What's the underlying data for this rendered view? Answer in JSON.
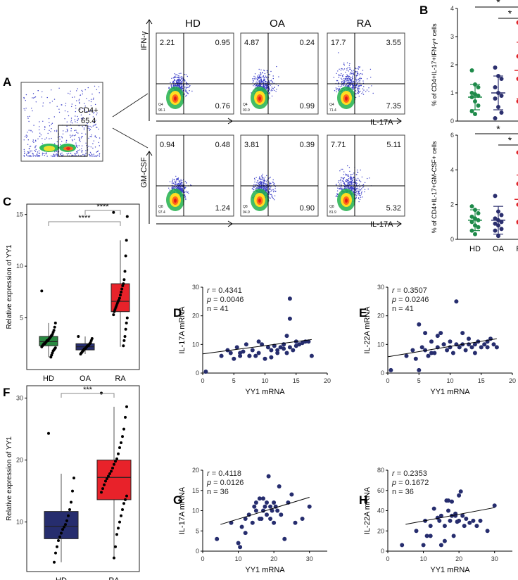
{
  "panel_letters": [
    "A",
    "B",
    "C",
    "D",
    "E",
    "F",
    "G",
    "H"
  ],
  "flow": {
    "columns": [
      "HD",
      "OA",
      "RA"
    ],
    "gate_label": "CD4+",
    "gate_value": "65.4",
    "row1_ylabel": "IFN-γ",
    "row2_ylabel": "GM-CSF",
    "xlabel": "IL-17A",
    "row1": [
      {
        "tl": "2.21",
        "tr": "0.95",
        "br": "0.76",
        "bl1": "Q4",
        "bl2": "96.1"
      },
      {
        "tl": "4.87",
        "tr": "0.24",
        "br": "0.99",
        "bl1": "Q4",
        "bl2": "93.9"
      },
      {
        "tl": "17.7",
        "tr": "3.55",
        "br": "7.35",
        "bl1": "Q4",
        "bl2": "71.4"
      }
    ],
    "row2": [
      {
        "tl": "0.94",
        "tr": "0.48",
        "br": "1.24",
        "bl1": "Q8",
        "bl2": "97.4"
      },
      {
        "tl": "3.81",
        "tr": "0.39",
        "br": "0.90",
        "bl1": "Q8",
        "bl2": "94.9"
      },
      {
        "tl": "7.71",
        "tr": "5.11",
        "br": "5.32",
        "bl1": "Q8",
        "bl2": "81.9"
      }
    ]
  },
  "chart_data": [
    {
      "panel": "B-top",
      "type": "scatter",
      "ylabel": "% of CD4+IL-17+IFN-γ+ cells",
      "categories": [
        "HD",
        "OA",
        "RA"
      ],
      "ylim": [
        0,
        4
      ],
      "yticks": [
        0,
        1,
        2,
        3,
        4
      ],
      "groups": [
        {
          "name": "HD",
          "color": "#1e8a4a",
          "mean": 0.85,
          "sd": 0.45,
          "values": [
            1.8,
            1.3,
            1.2,
            1.0,
            0.95,
            0.9,
            0.85,
            0.7,
            0.55,
            0.35,
            0.25
          ]
        },
        {
          "name": "OA",
          "color": "#2b2f6e",
          "mean": 1.0,
          "sd": 0.6,
          "values": [
            1.9,
            1.6,
            1.5,
            1.2,
            1.0,
            0.9,
            0.8,
            0.5,
            0.3,
            0.1
          ]
        },
        {
          "name": "RA",
          "color": "#e0262a",
          "mean": 1.8,
          "sd": 1.0,
          "values": [
            3.5,
            3.2,
            2.6,
            2.3,
            2.0,
            1.8,
            1.5,
            1.4,
            1.2,
            0.7
          ]
        }
      ],
      "significance": [
        "*",
        "*"
      ]
    },
    {
      "panel": "B-bottom",
      "type": "scatter",
      "ylabel": "% of CD4+IL-17+GM-CSF+ cells",
      "categories": [
        "HD",
        "OA",
        "RA"
      ],
      "ylim": [
        0,
        6
      ],
      "yticks": [
        0,
        2,
        4,
        6
      ],
      "groups": [
        {
          "name": "HD",
          "color": "#1e8a4a",
          "mean": 1.1,
          "sd": 0.6,
          "values": [
            1.9,
            1.7,
            1.5,
            1.3,
            1.2,
            1.1,
            1.0,
            0.8,
            0.7,
            0.5,
            0.3
          ]
        },
        {
          "name": "OA",
          "color": "#2b2f6e",
          "mean": 1.1,
          "sd": 0.8,
          "values": [
            2.5,
            1.6,
            1.4,
            1.2,
            1.1,
            1.0,
            0.9,
            0.8,
            0.6,
            0.5,
            0.2
          ]
        },
        {
          "name": "RA",
          "color": "#e0262a",
          "mean": 2.3,
          "sd": 1.4,
          "values": [
            5.0,
            4.0,
            3.8,
            3.2,
            2.8,
            2.3,
            2.0,
            1.8,
            1.4,
            1.0,
            0.5
          ]
        }
      ],
      "significance": [
        "*",
        "*"
      ]
    },
    {
      "panel": "C",
      "type": "box",
      "ylabel": "Relative expression of YY1",
      "categories": [
        "HD",
        "OA",
        "RA"
      ],
      "ylim": [
        0,
        16
      ],
      "yticks": [
        5,
        10,
        15
      ],
      "boxes": [
        {
          "name": "HD",
          "color": "#2a8a42",
          "q1": 2.3,
          "median": 2.7,
          "q3": 3.2,
          "whislo": 1.2,
          "whishi": 4.5
        },
        {
          "name": "OA",
          "color": "#262d6e",
          "q1": 1.9,
          "median": 2.2,
          "q3": 2.5,
          "whislo": 1.5,
          "whishi": 3.2
        },
        {
          "name": "RA",
          "color": "#e8222a",
          "q1": 5.6,
          "median": 6.6,
          "q3": 8.3,
          "whislo": 2.2,
          "whishi": 12.5
        }
      ],
      "points": {
        "HD": [
          7.6,
          4.5,
          4.1,
          3.8,
          3.6,
          3.4,
          3.3,
          3.2,
          3.1,
          3.0,
          2.9,
          2.8,
          2.8,
          2.7,
          2.6,
          2.5,
          2.5,
          2.4,
          2.3,
          2.2,
          2.1,
          2.0,
          1.9,
          1.8,
          1.6,
          1.4,
          1.2
        ],
        "OA": [
          3.2,
          3.0,
          2.8,
          2.6,
          2.5,
          2.4,
          2.3,
          2.3,
          2.2,
          2.1,
          2.0,
          2.0,
          1.9,
          1.8,
          1.7,
          1.6,
          1.5
        ],
        "RA": [
          15.2,
          14.8,
          12.5,
          11.0,
          9.5,
          8.7,
          8.3,
          8.1,
          7.8,
          7.5,
          7.2,
          6.9,
          6.7,
          6.6,
          6.4,
          6.2,
          6.0,
          5.8,
          5.6,
          5.3,
          5.0,
          4.5,
          3.9,
          3.2,
          2.8,
          2.3
        ]
      },
      "significance": [
        "****",
        "****"
      ]
    },
    {
      "panel": "D",
      "type": "scatter",
      "xlabel": "YY1 mRNA",
      "ylabel": "IL-17A mRNA",
      "xlim": [
        0,
        20
      ],
      "ylim": [
        0,
        30
      ],
      "xticks": [
        0,
        5,
        10,
        15,
        20
      ],
      "yticks": [
        0,
        10,
        20,
        30
      ],
      "stats": {
        "r": "0.4341",
        "p": "0.0046",
        "n": "41"
      },
      "color": "#262d6e",
      "x": [
        0.5,
        3,
        4,
        4.5,
        5,
        5.5,
        6,
        6.5,
        7,
        7.5,
        8,
        8.5,
        9,
        9,
        10,
        10.5,
        11,
        11.5,
        12,
        12,
        12.5,
        13,
        13,
        13.5,
        13.5,
        14,
        14,
        14.5,
        15,
        15,
        15.5,
        16,
        16.5,
        17,
        17.5,
        6,
        7.5,
        9.5,
        11,
        13,
        14
      ],
      "y": [
        0.5,
        6,
        8,
        7,
        5,
        9,
        6,
        7.5,
        10,
        6,
        8,
        6,
        11,
        7,
        5,
        9,
        8,
        9.5,
        7,
        8,
        9,
        10,
        8.5,
        13,
        7,
        26,
        19,
        8,
        11,
        9.5,
        10,
        10.5,
        11,
        11,
        6,
        7,
        6,
        10,
        5.5,
        10,
        9
      ],
      "fit": [
        [
          0,
          6.7
        ],
        [
          17.5,
          11.7
        ]
      ]
    },
    {
      "panel": "E",
      "type": "scatter",
      "xlabel": "YY1 mRNA",
      "ylabel": "IL-22A mRNA",
      "xlim": [
        0,
        20
      ],
      "ylim": [
        0,
        30
      ],
      "xticks": [
        0,
        5,
        10,
        15,
        20
      ],
      "yticks": [
        0,
        10,
        20,
        30
      ],
      "stats": {
        "r": "0.3507",
        "p": "0.0246",
        "n": "41"
      },
      "color": "#262d6e",
      "x": [
        0.5,
        3,
        4,
        4.5,
        5,
        5,
        5.5,
        6,
        6.5,
        7,
        7.5,
        8,
        8,
        8.5,
        9,
        9.5,
        10,
        10.5,
        11,
        11,
        11.5,
        12,
        12.5,
        13,
        13.5,
        14,
        14,
        14.5,
        15,
        15.5,
        16,
        16,
        16.5,
        17,
        17.5,
        6,
        7,
        9,
        10,
        12,
        13
      ],
      "y": [
        1,
        6,
        8,
        5,
        17,
        1,
        9,
        8,
        6,
        11,
        7,
        9,
        13,
        14,
        10,
        8,
        11,
        7,
        25,
        10,
        9,
        14,
        8,
        10,
        9,
        7,
        10,
        11,
        9,
        10,
        11,
        9,
        12,
        10,
        9,
        14,
        7,
        10,
        9,
        10,
        12
      ],
      "fit": [
        [
          0,
          5.7
        ],
        [
          17.5,
          12
        ]
      ]
    },
    {
      "panel": "F",
      "type": "box",
      "ylabel": "Relative expression of YY1",
      "categories": [
        "HD",
        "RA"
      ],
      "ylim": [
        2,
        32
      ],
      "yticks": [
        10,
        20,
        30
      ],
      "boxes": [
        {
          "name": "HD",
          "color": "#262d6e",
          "q1": 7.3,
          "median": 9.3,
          "q3": 11.7,
          "whislo": 3.5,
          "whishi": 17.8
        },
        {
          "name": "RA",
          "color": "#e8222a",
          "q1": 13.6,
          "median": 17.2,
          "q3": 20.0,
          "whislo": 4.2,
          "whishi": 28.6
        }
      ],
      "points": {
        "HD": [
          24.3,
          17.1,
          15.0,
          13.2,
          12.0,
          11.0,
          10.2,
          9.6,
          9.2,
          8.8,
          8.2,
          7.6,
          7.0,
          6.0,
          5.0,
          3.5
        ],
        "RA": [
          30.8,
          28.6,
          26.9,
          25.0,
          23.8,
          22.8,
          22.0,
          21.0,
          20.2,
          19.8,
          19.3,
          18.7,
          18.2,
          17.8,
          17.4,
          17.0,
          16.6,
          16.0,
          15.4,
          14.8,
          14.2,
          13.6,
          13.0,
          12.0,
          11.0,
          10.0,
          9.0,
          8.0,
          6.0,
          4.2
        ]
      },
      "significance": [
        "***"
      ]
    },
    {
      "panel": "G",
      "type": "scatter",
      "xlabel": "YY1 mRNA",
      "ylabel": "IL-17A mRNA",
      "xlim": [
        0,
        35
      ],
      "ylim": [
        0,
        20
      ],
      "xticks": [
        0,
        10,
        20,
        30
      ],
      "yticks": [
        0,
        5,
        10,
        15,
        20
      ],
      "stats": {
        "r": "0.4118",
        "p": "0.0126",
        "n": "36"
      },
      "color": "#262d6e",
      "x": [
        4,
        8,
        10,
        10.5,
        11,
        12,
        13,
        14,
        14.5,
        15,
        15,
        16,
        16.5,
        17,
        17,
        17.5,
        18,
        18,
        18.5,
        19,
        19,
        19.5,
        20,
        20,
        20.5,
        21,
        21.5,
        22,
        23,
        24,
        25,
        26,
        28,
        30,
        12,
        16
      ],
      "y": [
        3,
        7,
        2,
        1,
        6,
        8,
        9,
        7,
        11,
        10,
        12,
        13,
        8,
        13,
        10,
        11,
        9,
        12,
        18.5,
        11,
        8,
        10,
        12,
        7,
        11,
        10,
        16,
        9,
        3,
        12,
        14,
        7,
        8,
        11,
        4.5,
        8
      ],
      "fit": [
        [
          5,
          6.6
        ],
        [
          30,
          13.3
        ]
      ]
    },
    {
      "panel": "H",
      "type": "scatter",
      "xlabel": "YY1 mRNA",
      "ylabel": "IL-22A mRNA",
      "xlim": [
        0,
        35
      ],
      "ylim": [
        0,
        80
      ],
      "xticks": [
        0,
        10,
        20,
        30
      ],
      "yticks": [
        0,
        20,
        40,
        60,
        80
      ],
      "stats": {
        "r": "0.2353",
        "p": "0.1672",
        "n": "36"
      },
      "color": "#262d6e",
      "x": [
        4,
        8,
        10,
        10.5,
        11,
        12,
        13,
        14,
        14.5,
        15,
        15,
        16,
        16.5,
        17,
        17,
        17.5,
        18,
        18,
        18.5,
        19,
        19,
        19.5,
        20,
        20,
        20.5,
        21,
        21.5,
        22,
        23,
        24,
        25,
        26,
        28,
        30,
        12,
        16
      ],
      "y": [
        6,
        20,
        6,
        30,
        15,
        25,
        42,
        33,
        30,
        6,
        35,
        25,
        50,
        50,
        40,
        30,
        35,
        49,
        15,
        35,
        37,
        29,
        55,
        30,
        59,
        35,
        25,
        32,
        28,
        30,
        25,
        30,
        20,
        45,
        15,
        10
      ],
      "fit": [
        [
          5,
          26.5
        ],
        [
          30,
          43
        ]
      ]
    }
  ]
}
